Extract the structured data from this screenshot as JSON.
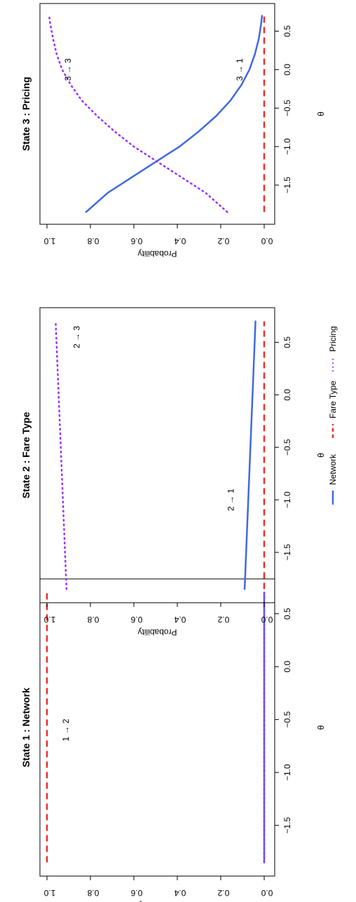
{
  "colors": {
    "Network": "#4169E1",
    "Fare Type": "#EE2C2C",
    "Pricing": "#9B30FF"
  },
  "legend": {
    "items": [
      {
        "name": "Network",
        "line": "solid"
      },
      {
        "name": "Fare Type",
        "line": "dashed"
      },
      {
        "name": "Pricing",
        "line": "dotted"
      }
    ]
  },
  "chart_data": [
    {
      "type": "line",
      "title": "State 1 : Network",
      "xlabel": "θ",
      "ylabel": "Probability",
      "xlim": [
        -1.9,
        0.75
      ],
      "ylim": [
        0,
        1
      ],
      "x_ticks": [
        "−1.5",
        "−1.0",
        "−0.5",
        "0.0",
        "0.5"
      ],
      "x_tick_values": [
        -1.5,
        -1.0,
        -0.5,
        0.0,
        0.5
      ],
      "y_ticks": [
        "0.0",
        "0.2",
        "0.4",
        "0.6",
        "0.8",
        "1.0"
      ],
      "y_tick_values": [
        0,
        0.2,
        0.4,
        0.6,
        0.8,
        1.0
      ],
      "series": [
        {
          "name": "Network",
          "x": [
            -1.85,
            0.7
          ],
          "values": [
            0.0,
            0.0
          ]
        },
        {
          "name": "Fare Type",
          "x": [
            -1.85,
            0.7
          ],
          "values": [
            1.0,
            1.0
          ]
        },
        {
          "name": "Pricing",
          "x": [
            -1.85,
            0.7
          ],
          "values": [
            0.0,
            0.0
          ]
        }
      ],
      "annotations": [
        {
          "text": "1 → 2",
          "x": -0.6,
          "y": 0.9
        }
      ]
    },
    {
      "type": "line",
      "title": "State 2 : Fare Type",
      "xlabel": "θ",
      "ylabel": "Probability",
      "xlim": [
        -1.9,
        0.75
      ],
      "ylim": [
        0,
        1
      ],
      "x_ticks": [
        "−1.5",
        "−1.0",
        "−0.5",
        "0.0",
        "0.5"
      ],
      "x_tick_values": [
        -1.5,
        -1.0,
        -0.5,
        0.0,
        0.5
      ],
      "y_ticks": [
        "0.0",
        "0.2",
        "0.4",
        "0.6",
        "0.8",
        "1.0"
      ],
      "y_tick_values": [
        0,
        0.2,
        0.4,
        0.6,
        0.8,
        1.0
      ],
      "series": [
        {
          "name": "Network",
          "x": [
            -1.85,
            0.7
          ],
          "values": [
            0.09,
            0.04
          ]
        },
        {
          "name": "Fare Type",
          "x": [
            -1.85,
            0.7
          ],
          "values": [
            0.0,
            0.0
          ]
        },
        {
          "name": "Pricing",
          "x": [
            -1.85,
            0.7
          ],
          "values": [
            0.91,
            0.96
          ]
        }
      ],
      "annotations": [
        {
          "text": "2 → 1",
          "x": -1.0,
          "y": 0.14
        },
        {
          "text": "2 → 3",
          "x": 0.55,
          "y": 0.85
        }
      ]
    },
    {
      "type": "line",
      "title": "State 3 : Pricing",
      "xlabel": "θ",
      "ylabel": "Probability",
      "xlim": [
        -1.9,
        0.75
      ],
      "ylim": [
        0,
        1
      ],
      "x_ticks": [
        "−1.5",
        "−1.0",
        "−0.5",
        "0.0",
        "0.5"
      ],
      "x_tick_values": [
        -1.5,
        -1.0,
        -0.5,
        0.0,
        0.5
      ],
      "y_ticks": [
        "0.0",
        "0.2",
        "0.4",
        "0.6",
        "0.8",
        "1.0"
      ],
      "y_tick_values": [
        0,
        0.2,
        0.4,
        0.6,
        0.8,
        1.0
      ],
      "series": [
        {
          "name": "Network",
          "x": [
            -1.85,
            -1.6,
            -1.4,
            -1.2,
            -1.0,
            -0.8,
            -0.6,
            -0.4,
            -0.2,
            0.0,
            0.2,
            0.4,
            0.6,
            0.7
          ],
          "values": [
            0.82,
            0.72,
            0.61,
            0.5,
            0.39,
            0.3,
            0.22,
            0.155,
            0.105,
            0.068,
            0.043,
            0.025,
            0.014,
            0.01
          ]
        },
        {
          "name": "Fare Type",
          "x": [
            -1.85,
            0.7
          ],
          "values": [
            0.0,
            0.0
          ]
        },
        {
          "name": "Pricing",
          "x": [
            -1.85,
            -1.6,
            -1.4,
            -1.2,
            -1.0,
            -0.8,
            -0.6,
            -0.4,
            -0.2,
            0.0,
            0.2,
            0.4,
            0.6,
            0.7
          ],
          "values": [
            0.17,
            0.27,
            0.38,
            0.49,
            0.6,
            0.69,
            0.77,
            0.84,
            0.89,
            0.93,
            0.955,
            0.972,
            0.985,
            0.99
          ]
        }
      ],
      "annotations": [
        {
          "text": "3 → 3",
          "x": 0.0,
          "y": 0.89
        },
        {
          "text": "3 → 1",
          "x": 0.0,
          "y": 0.1
        }
      ]
    }
  ]
}
